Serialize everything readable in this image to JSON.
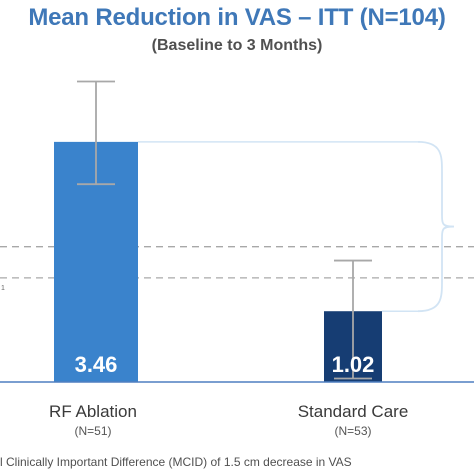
{
  "chart_data": {
    "type": "bar",
    "title": "Mean Reduction in VAS – ITT (N=104)",
    "subtitle": "(Baseline to 3 Months)",
    "categories": [
      "RF Ablation",
      "Standard Care"
    ],
    "category_counts": [
      "(N=51)",
      "(N=53)"
    ],
    "values": [
      3.46,
      1.02
    ],
    "value_labels": [
      "3.46",
      "1.02"
    ],
    "error_bars": [
      {
        "low": 2.85,
        "high": 4.33
      },
      {
        "low": 0.05,
        "high": 1.75
      }
    ],
    "bar_colors": [
      "#3a83cc",
      "#163d73"
    ],
    "error_bar_color": "#a8a8a8",
    "reference_lines": [
      1.95,
      1.5
    ],
    "reference_line_marker": "1",
    "ylim": [
      0,
      5
    ],
    "grid": false,
    "legend": "none",
    "xlabel": "",
    "ylabel": ""
  },
  "footnote": "l Clinically Important Difference (MCID) of 1.5 cm decrease in VAS"
}
